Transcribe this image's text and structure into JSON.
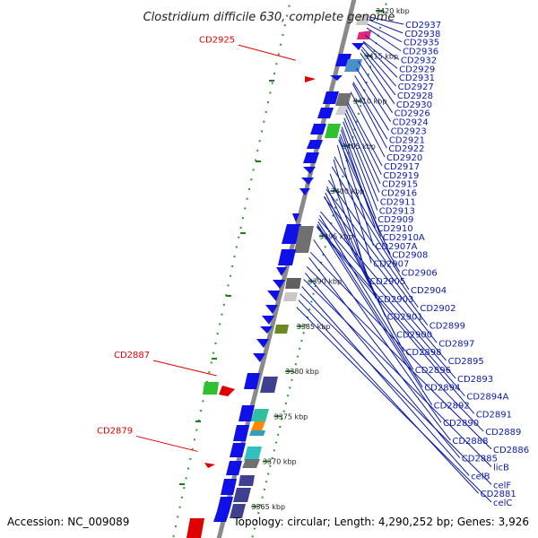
{
  "title": "Clostridium difficile 630, complete genome",
  "footer": {
    "accession": "Accession: NC_009089",
    "topology": "Topology: circular; Length: 4,290,252 bp; Genes: 3,926"
  },
  "colors": {
    "backbone": "#8a8a8a",
    "forward_gene": "#1010e8",
    "label_right": "#0a1aa8",
    "label_left": "#e10000",
    "gc_ticks": "#2a9a2a"
  },
  "kbp_markers": [
    {
      "label": "3420 kbp",
      "kbp": 3420
    },
    {
      "label": "3415 kbp",
      "kbp": 3415
    },
    {
      "label": "3410 kbp",
      "kbp": 3410
    },
    {
      "label": "3405 kbp",
      "kbp": 3405
    },
    {
      "label": "3400 kbp",
      "kbp": 3400
    },
    {
      "label": "3395 kbp",
      "kbp": 3395
    },
    {
      "label": "3390 kbp",
      "kbp": 3390
    },
    {
      "label": "3385 kbp",
      "kbp": 3385
    },
    {
      "label": "3380 kbp",
      "kbp": 3380
    },
    {
      "label": "3375 kbp",
      "kbp": 3375
    },
    {
      "label": "3370 kbp",
      "kbp": 3370
    },
    {
      "label": "3365 kbp",
      "kbp": 3365
    }
  ],
  "right_labels": [
    {
      "text": "CD2937",
      "kbp": 3419.6
    },
    {
      "text": "CD2938",
      "kbp": 3419.3
    },
    {
      "text": "CD2935",
      "kbp": 3418.8
    },
    {
      "text": "CD2936",
      "kbp": 3418.4
    },
    {
      "text": "CD2932",
      "kbp": 3417.6
    },
    {
      "text": "CD2929",
      "kbp": 3416.9
    },
    {
      "text": "CD2931",
      "kbp": 3416.8
    },
    {
      "text": "CD2927",
      "kbp": 3416.3
    },
    {
      "text": "CD2928",
      "kbp": 3416.0
    },
    {
      "text": "CD2930",
      "kbp": 3415.6
    },
    {
      "text": "CD2926",
      "kbp": 3414.7
    },
    {
      "text": "CD2924",
      "kbp": 3413.9
    },
    {
      "text": "CD2923",
      "kbp": 3413.1
    },
    {
      "text": "CD2921",
      "kbp": 3412.4
    },
    {
      "text": "CD2922",
      "kbp": 3412.2
    },
    {
      "text": "CD2920",
      "kbp": 3411.3
    },
    {
      "text": "CD2917",
      "kbp": 3410.1
    },
    {
      "text": "CD2919",
      "kbp": 3409.8
    },
    {
      "text": "CD2915",
      "kbp": 3409.3
    },
    {
      "text": "CD2916",
      "kbp": 3408.9
    },
    {
      "text": "CD2911",
      "kbp": 3408.4
    },
    {
      "text": "CD2913",
      "kbp": 3408.0
    },
    {
      "text": "CD2909",
      "kbp": 3407.4
    },
    {
      "text": "CD2910",
      "kbp": 3407.1
    },
    {
      "text": "CD2910A",
      "kbp": 3406.6
    },
    {
      "text": "CD2907A",
      "kbp": 3406.3
    },
    {
      "text": "CD2908",
      "kbp": 3406.0
    },
    {
      "text": "CD2907",
      "kbp": 3405.4
    },
    {
      "text": "CD2906",
      "kbp": 3404.1
    },
    {
      "text": "CD2905",
      "kbp": 3403.8
    },
    {
      "text": "CD2904",
      "kbp": 3403.0
    },
    {
      "text": "CD2903",
      "kbp": 3402.2
    },
    {
      "text": "CD2902",
      "kbp": 3401.5
    },
    {
      "text": "CD2901",
      "kbp": 3400.8
    },
    {
      "text": "CD2899",
      "kbp": 3400.5
    },
    {
      "text": "CD2900",
      "kbp": 3400.1
    },
    {
      "text": "CD2897",
      "kbp": 3399.6
    },
    {
      "text": "CD2898",
      "kbp": 3399.7
    },
    {
      "text": "CD2895",
      "kbp": 3398.0
    },
    {
      "text": "CD2896",
      "kbp": 3397.6
    },
    {
      "text": "CD2893",
      "kbp": 3397.2
    },
    {
      "text": "CD2894",
      "kbp": 3396.9
    },
    {
      "text": "CD2894A",
      "kbp": 3396.4
    },
    {
      "text": "CD2892",
      "kbp": 3396.6
    },
    {
      "text": "CD2891",
      "kbp": 3396.3
    },
    {
      "text": "CD2890",
      "kbp": 3394.9
    },
    {
      "text": "CD2889",
      "kbp": 3393.5
    },
    {
      "text": "CD2888",
      "kbp": 3392.9
    },
    {
      "text": "CD2886",
      "kbp": 3391.9
    },
    {
      "text": "CD2885",
      "kbp": 3391.2
    },
    {
      "text": "licB",
      "kbp": 3390.5
    },
    {
      "text": "celB",
      "kbp": 3389.7
    },
    {
      "text": "celF",
      "kbp": 3388.9
    },
    {
      "text": "CD2881",
      "kbp": 3388.2
    },
    {
      "text": "celC",
      "kbp": 3387.4
    }
  ],
  "left_labels": [
    {
      "text": "CD2925",
      "kbp": 3414.8
    },
    {
      "text": "CD2887",
      "kbp": 3379.8
    },
    {
      "text": "CD2879",
      "kbp": 3371.4
    }
  ]
}
